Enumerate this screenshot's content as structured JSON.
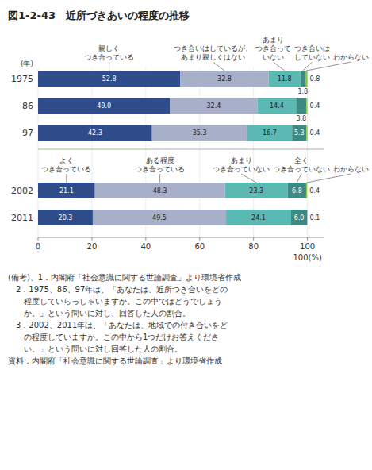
{
  "chart_data": {
    "type": "bar",
    "orientation": "horizontal",
    "stacked": true,
    "data_labels": true,
    "grid": true,
    "title": "図1-2-43　近所づきあいの程度の推移",
    "ylabel": "(年)",
    "xlabel": "100(%)",
    "categories": [
      "1975",
      "86",
      "97",
      "2002",
      "2011"
    ],
    "series": [
      {
        "color": "#2e4d8a",
        "values": [
          52.8,
          49.0,
          42.3,
          21.1,
          20.3
        ],
        "value_labels": [
          "52.8",
          "49.0",
          "42.3",
          "21.1",
          "20.3"
        ]
      },
      {
        "color": "#a8afc8",
        "values": [
          32.8,
          32.4,
          35.3,
          48.3,
          49.5
        ]
      },
      {
        "color": "#5cb8b2",
        "values": [
          11.8,
          14.4,
          16.7,
          23.3,
          24.1
        ]
      },
      {
        "color": "#3d8a85",
        "values": [
          1.8,
          3.8,
          5.3,
          6.8,
          6.0
        ],
        "value_labels": [
          "1.8",
          "3.8",
          "5.3",
          "6.8",
          "6.0"
        ]
      },
      {
        "color": "#8cc63f",
        "values": [
          0.8,
          0.4,
          0.4,
          0.4,
          0.1
        ]
      }
    ],
    "xlim": [
      0,
      106
    ],
    "xticks": [
      0,
      20,
      40,
      60,
      80,
      100
    ],
    "annotations": [
      {
        "text": "親しく\nつき合っている",
        "category": "1975",
        "series": 0
      },
      {
        "text": "つき合いはしているが、\nあまり親しくはない",
        "category": "1975",
        "series": 1
      },
      {
        "text": "あまり\nつき合って\nいない",
        "category": "1975",
        "series": 2
      },
      {
        "text": "つき合いは\nしていない",
        "category": "1975",
        "series": 3
      },
      {
        "text": "わからない",
        "category": "1975",
        "series": 4
      },
      {
        "text": "よく\nつき合っている",
        "category": "2002",
        "series": 0
      },
      {
        "text": "ある程度\nつき合っている",
        "category": "2002",
        "series": 1
      },
      {
        "text": "あまり\nつき合っていない",
        "category": "2002",
        "series": 2
      },
      {
        "text": "全く\nつき合っていない",
        "category": "2002",
        "series": 3
      },
      {
        "text": "わからない",
        "category": "2002",
        "series": 4
      }
    ],
    "notes": [
      "(備考)、1．内閣府「社会意識に関する世論調査」より環境省作成",
      "　2．1975、86、97年は、「あなたは、近所つき合いをどの",
      "　　程度していらっしゃいますか。この中ではどうでしょう",
      "　　か。」という問いに対し、回答した人の割合。",
      "　3．2002、2011年は、「あなたは、地域での付き合いをど",
      "　　の程度していますか。この中から1つだけお答えくださ",
      "　　い。」という問いに対し回答した人の割合。"
    ],
    "source": "資料：内閣府「社会意識に関する世論調査」より環境省作成"
  }
}
